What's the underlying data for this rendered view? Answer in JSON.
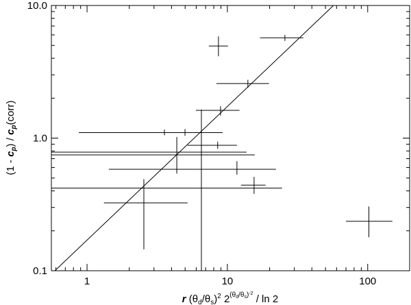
{
  "chart_data": {
    "type": "errorbar",
    "x": [
      8.64,
      25.7,
      14.0,
      8.94,
      3.56,
      4.99,
      4.36,
      6.53,
      8.53,
      6.53,
      11.7,
      15.5,
      5.6,
      2.54,
      102
    ],
    "xmin": [
      7.38,
      17.1,
      8.35,
      5.97,
      2.78,
      0.874,
      0.557,
      0.557,
      5.2,
      1.43,
      11.7,
      12.5,
      0.557,
      1.32,
      70.0
    ],
    "xmax": [
      10.1,
      34.8,
      19.8,
      12.2,
      5.1,
      9.25,
      15.7,
      13.7,
      11.7,
      22.2,
      11.7,
      18.7,
      24.5,
      5.2,
      150
    ],
    "values": [
      4.95,
      5.71,
      2.58,
      1.62,
      1.1,
      1.1,
      0.747,
      0.784,
      0.882,
      0.582,
      0.6,
      0.442,
      0.42,
      0.325,
      0.236
    ],
    "ymin": [
      4.14,
      5.4,
      2.4,
      1.48,
      1.05,
      1.04,
      0.54,
      0.1,
      0.83,
      0.1,
      0.53,
      0.38,
      0.42,
      0.145,
      0.179
    ],
    "ymax": [
      5.85,
      6.0,
      2.75,
      1.74,
      1.16,
      1.17,
      1.02,
      1.64,
      0.94,
      0.925,
      0.67,
      0.51,
      0.42,
      0.49,
      0.305
    ],
    "fit_line": {
      "x": [
        0.59,
        57
      ],
      "y": [
        0.1,
        10
      ]
    },
    "color": "#000000",
    "xlim": [
      0.557,
      199
    ],
    "ylim": [
      0.1,
      10
    ],
    "log_x": true,
    "log_y": true,
    "xticks": [
      1,
      10,
      100
    ],
    "yticks": [
      {
        "value": 0.1,
        "label": "0.1"
      },
      {
        "value": 1,
        "label": "1.0"
      },
      {
        "value": 10,
        "label": "10.0"
      }
    ],
    "xminorticks": [
      0.6,
      0.7,
      0.8,
      0.9,
      2,
      3,
      4,
      5,
      6,
      7,
      8,
      9,
      20,
      30,
      40,
      50,
      60,
      70,
      80,
      90,
      200
    ],
    "yminorticks": [
      0.2,
      0.3,
      0.4,
      0.5,
      0.6,
      0.7,
      0.8,
      0.9,
      2,
      3,
      4,
      5,
      6,
      7,
      8,
      9
    ],
    "xlabel": [
      "r",
      " (θ",
      "d",
      "/θ",
      "s",
      ")",
      "2",
      " 2",
      "(θ",
      "d",
      "/θ",
      "s",
      ")",
      "-2",
      " / ln 2"
    ],
    "ylabel": [
      "(1 - ",
      "c",
      "p",
      ") / ",
      "c",
      "p",
      "(corr)"
    ]
  }
}
